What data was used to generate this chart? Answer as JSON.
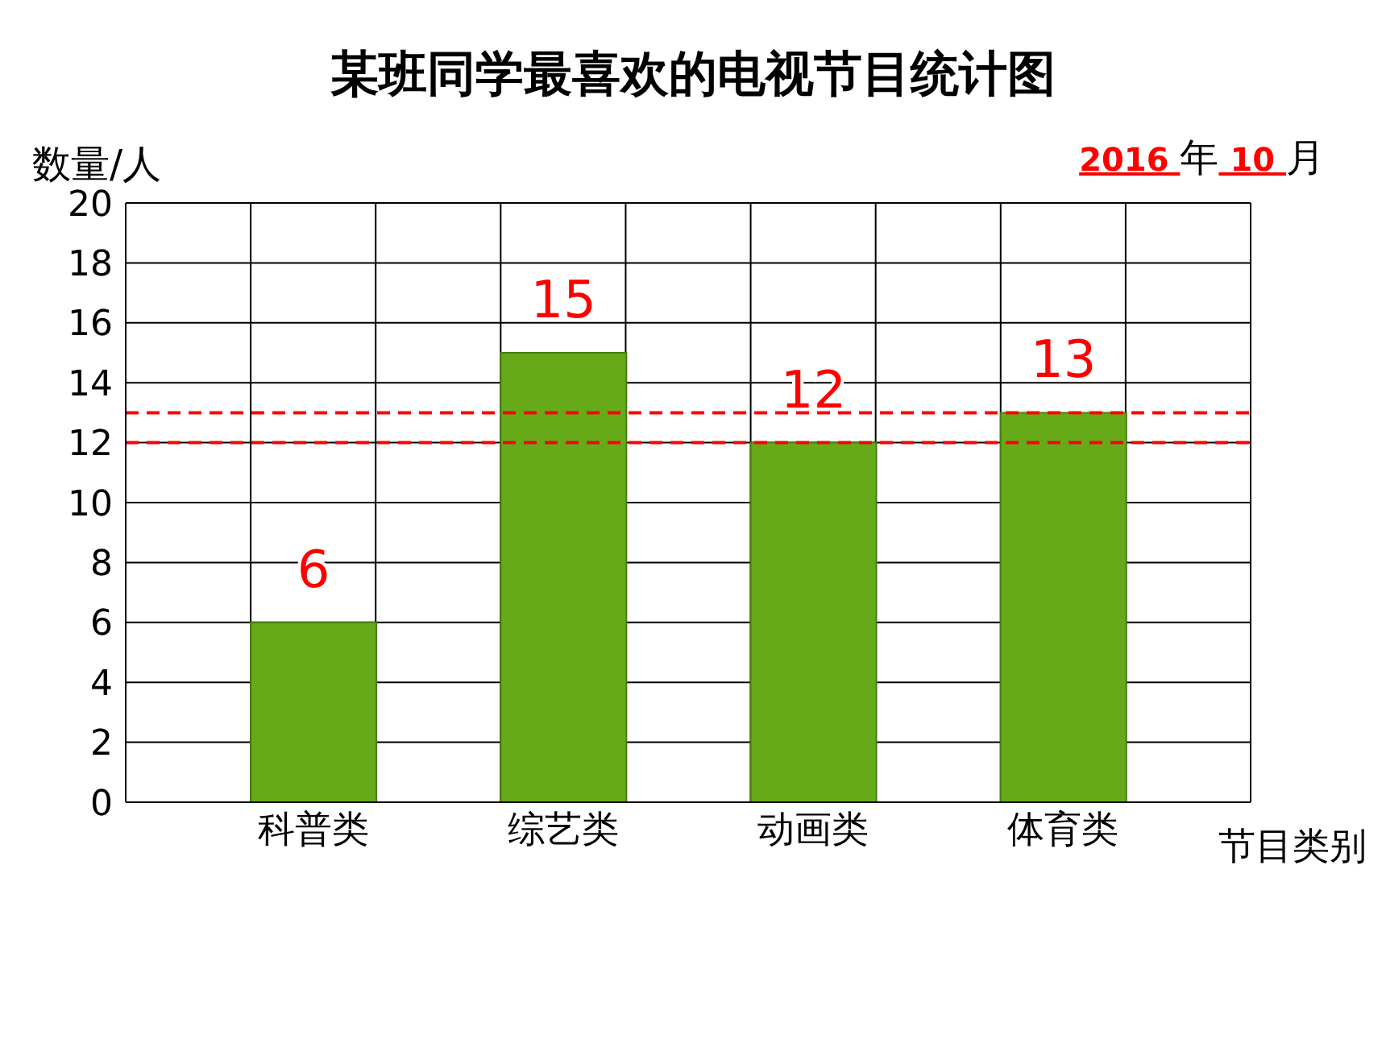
{
  "chart_data": {
    "type": "bar",
    "title": "某班同学最喜欢的电视节目统计图",
    "ylabel": "数量/人",
    "xlabel": "节目类别",
    "annotations": [
      "2016年10月"
    ],
    "categories": [
      "科普类",
      "综艺类",
      "动画类",
      "体育类"
    ],
    "values": [
      6,
      15,
      12,
      13
    ],
    "color": "#66aa1a",
    "ylim": [
      0,
      20
    ],
    "yticks": [
      0,
      2,
      4,
      6,
      8,
      10,
      12,
      14,
      16,
      18,
      20
    ],
    "grid": true,
    "data_labels": true,
    "ref_lines": [
      {
        "axis": "y",
        "value": 12,
        "color": "#ff0000",
        "line_style": "dashed"
      },
      {
        "axis": "y",
        "value": 13,
        "color": "#ff0000",
        "line_style": "dashed"
      }
    ]
  }
}
